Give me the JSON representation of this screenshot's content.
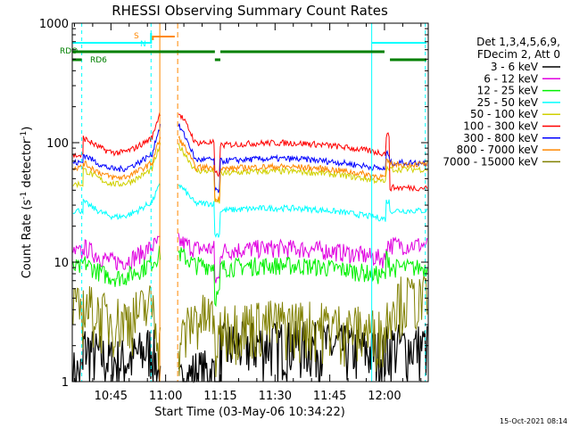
{
  "chart_data": {
    "type": "line",
    "title": "RHESSI Observing Summary Count Rates",
    "xlabel": "Start Time (03-May-06 10:34:22)",
    "ylabel": "Count Rate (s",
    "ylabel_sup": "-1",
    "ylabel_tail": " detector",
    "ylabel_close": ")",
    "yscale": "log",
    "ylim": [
      1,
      1000
    ],
    "xlim_minutes": [
      634.4,
      732.0
    ],
    "y_ticks": [
      {
        "value": 1,
        "label": "1"
      },
      {
        "value": 10,
        "label": "10"
      },
      {
        "value": 100,
        "label": "100"
      },
      {
        "value": 1000,
        "label": "1000"
      }
    ],
    "x_ticks": [
      {
        "minute": 645,
        "label": "10:45"
      },
      {
        "minute": 660,
        "label": "11:00"
      },
      {
        "minute": 675,
        "label": "11:15"
      },
      {
        "minute": 690,
        "label": "11:30"
      },
      {
        "minute": 705,
        "label": "11:45"
      },
      {
        "minute": 720,
        "label": "12:00"
      }
    ],
    "legend_header": [
      "Det 1,3,4,5,6,9,",
      "FDecim 2, Att 0"
    ],
    "series": [
      {
        "name": "3 - 6 keV",
        "color": "#000000",
        "levels": [
          1.2,
          2.0,
          0.9,
          1.2,
          2.0,
          1.6,
          1.7,
          2.0
        ]
      },
      {
        "name": "6 - 12 keV",
        "color": "#e000e0",
        "levels": [
          12,
          13.5,
          15,
          13,
          12.5,
          12,
          12.5,
          14
        ]
      },
      {
        "name": "12 - 25 keV",
        "color": "#00f000",
        "levels": [
          9,
          10,
          12,
          9.5,
          9,
          8,
          9.5,
          9
        ]
      },
      {
        "name": "25 - 50 keV",
        "color": "#00ffff",
        "levels": [
          27,
          32,
          45,
          31,
          27,
          23,
          28,
          27
        ]
      },
      {
        "name": "50 - 100 keV",
        "color": "#d0d000",
        "levels": [
          45,
          60,
          95,
          58,
          55,
          46,
          52,
          60
        ]
      },
      {
        "name": "100 - 300 keV",
        "color": "#ff0000",
        "levels": [
          78,
          110,
          180,
          100,
          95,
          80,
          100,
          42
        ]
      },
      {
        "name": "300 - 800 keV",
        "color": "#0000ff",
        "levels": [
          68,
          80,
          140,
          72,
          70,
          58,
          70,
          68
        ]
      },
      {
        "name": "800 - 7000 keV",
        "color": "#ff8800",
        "levels": [
          62,
          68,
          110,
          62,
          60,
          50,
          60,
          66
        ]
      },
      {
        "name": "7000 - 15000 keV",
        "color": "#808000",
        "levels": [
          4,
          4.5,
          2,
          3.5,
          3,
          2.5,
          3,
          5
        ]
      }
    ],
    "flags": [
      {
        "name": "RDO",
        "color": "#008000"
      },
      {
        "name": "RD6",
        "color": "#008000"
      },
      {
        "name": "S",
        "color": "#ff8800"
      },
      {
        "name": "N",
        "color": "#00ffff"
      }
    ],
    "timestamp": "15-Oct-2021 08:14"
  }
}
